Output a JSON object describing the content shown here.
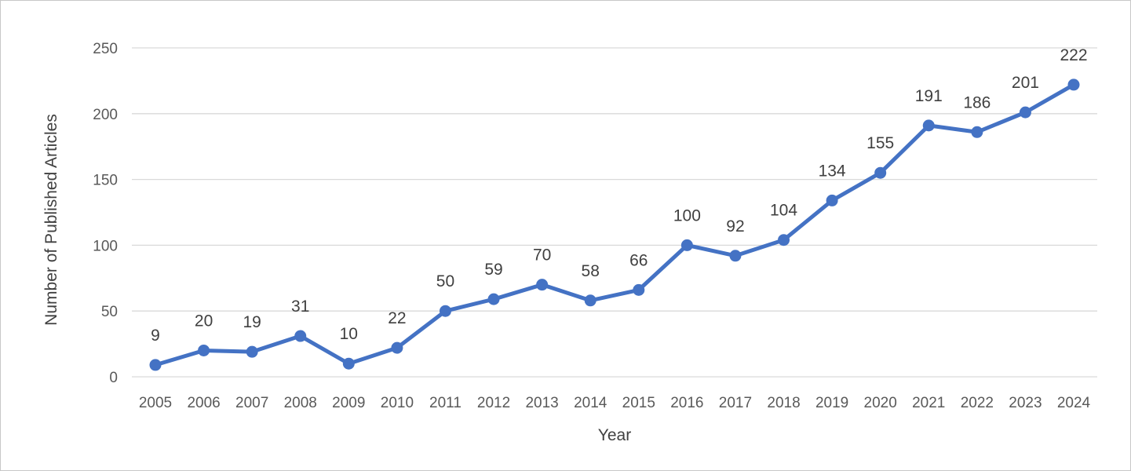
{
  "chart_data": {
    "type": "line",
    "title": "",
    "xlabel": "Year",
    "ylabel": "Number of Published Articles",
    "ylim": [
      0,
      250
    ],
    "yticks": [
      0,
      50,
      100,
      150,
      200,
      250
    ],
    "grid": "horizontal",
    "legend": "none",
    "categories": [
      "2005",
      "2006",
      "2007",
      "2008",
      "2009",
      "2010",
      "2011",
      "2012",
      "2013",
      "2014",
      "2015",
      "2016",
      "2017",
      "2018",
      "2019",
      "2020",
      "2021",
      "2022",
      "2023",
      "2024"
    ],
    "series": [
      {
        "values": [
          9,
          20,
          19,
          31,
          10,
          22,
          50,
          59,
          70,
          58,
          66,
          100,
          92,
          104,
          134,
          155,
          191,
          186,
          201,
          222
        ],
        "color": "#4472c4"
      }
    ],
    "data_labels": true
  }
}
